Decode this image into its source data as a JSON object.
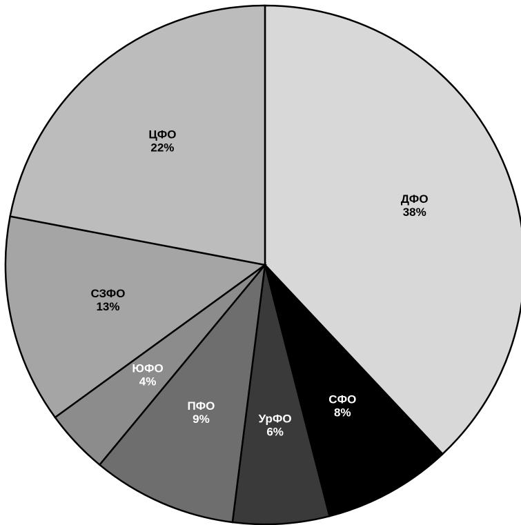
{
  "chart_data": {
    "type": "pie",
    "title": "",
    "legend": "none",
    "slices": [
      {
        "label": "ДФО",
        "value": 38,
        "value_label": "38%",
        "color": "#d8d8d8",
        "text_color": "#000000"
      },
      {
        "label": "СФО",
        "value": 8,
        "value_label": "8%",
        "color": "#000000",
        "text_color": "#ffffff"
      },
      {
        "label": "УрФО",
        "value": 6,
        "value_label": "6%",
        "color": "#3a3a3a",
        "text_color": "#ffffff"
      },
      {
        "label": "ПФО",
        "value": 9,
        "value_label": "9%",
        "color": "#6e6e6e",
        "text_color": "#ffffff"
      },
      {
        "label": "ЮФО",
        "value": 4,
        "value_label": "4%",
        "color": "#8c8c8c",
        "text_color": "#ffffff"
      },
      {
        "label": "СЗФО",
        "value": 13,
        "value_label": "13%",
        "color": "#a5a5a5",
        "text_color": "#000000"
      },
      {
        "label": "ЦФО",
        "value": 22,
        "value_label": "22%",
        "color": "#bcbcbc",
        "text_color": "#000000"
      }
    ]
  }
}
